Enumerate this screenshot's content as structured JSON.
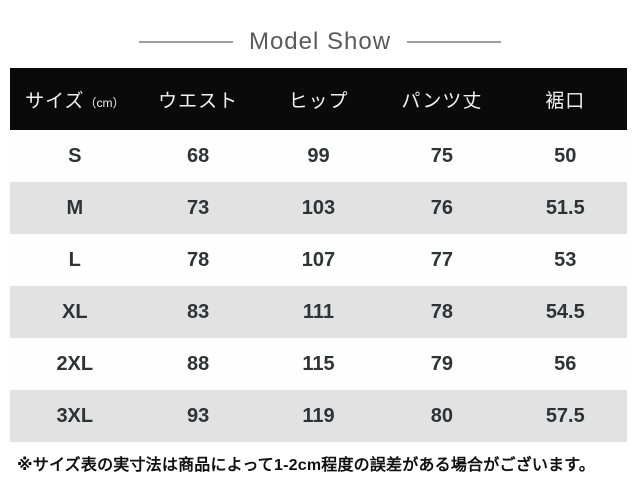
{
  "title": "Model Show",
  "table": {
    "headers": [
      "サイズ",
      "ウエスト",
      "ヒップ",
      "パンツ丈",
      "裾口"
    ],
    "size_unit": "（cm）",
    "rows": [
      [
        "S",
        "68",
        "99",
        "75",
        "50"
      ],
      [
        "M",
        "73",
        "103",
        "76",
        "51.5"
      ],
      [
        "L",
        "78",
        "107",
        "77",
        "53"
      ],
      [
        "XL",
        "83",
        "111",
        "78",
        "54.5"
      ],
      [
        "2XL",
        "88",
        "115",
        "79",
        "56"
      ],
      [
        "3XL",
        "93",
        "119",
        "80",
        "57.5"
      ]
    ]
  },
  "footnote": "※サイズ表の実寸法は商品によって1-2cm程度の誤差がある場合がございます。",
  "colors": {
    "header_bg": "#0a0a0a",
    "header_text": "#f2f2f2",
    "row_bg": "#fefefe",
    "row_alt_bg": "#e2e2e2",
    "cell_text": "#2f3237",
    "title_text": "#5a5a5a",
    "rule": "#9e9e9e",
    "footnote_text": "#101010"
  }
}
